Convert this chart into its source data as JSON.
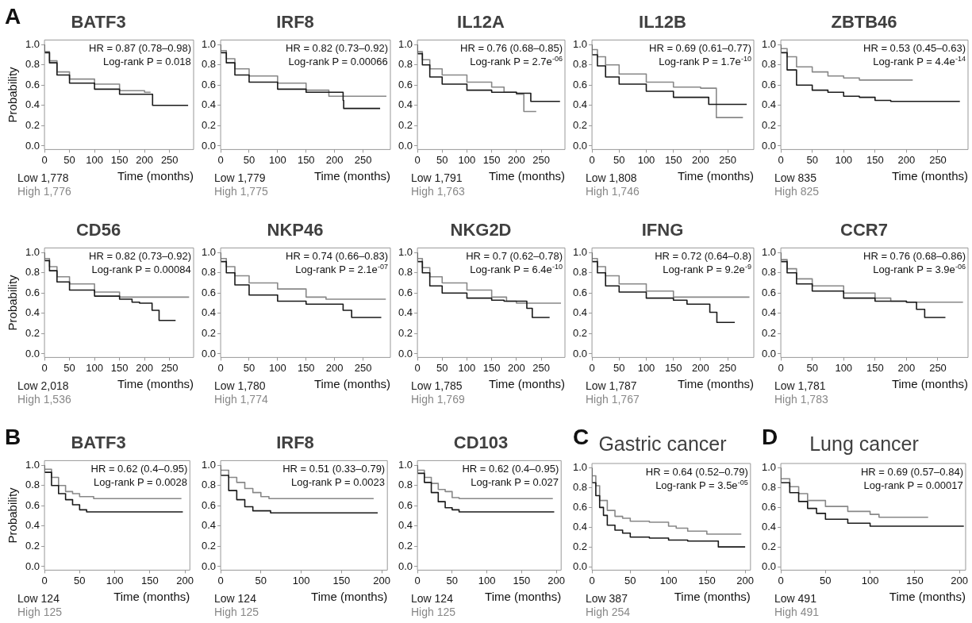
{
  "chart_data": [
    {
      "type": "step",
      "title": "BATF3",
      "ylabel": "Probability",
      "xlabel": "Time (months)",
      "xlim": [
        0,
        298
      ],
      "xticks": [
        0,
        50,
        100,
        150,
        200,
        250
      ],
      "ylim": [
        -0.035,
        1.045
      ],
      "yticks": [
        {
          "value": 0,
          "label": "0.0"
        },
        {
          "value": 0.2,
          "label": "0.2"
        },
        {
          "value": 0.4,
          "label": "0.4"
        },
        {
          "value": 0.6,
          "label": "0.6"
        },
        {
          "value": 0.8,
          "label": "0.8"
        },
        {
          "value": 1,
          "label": "1.0"
        }
      ],
      "annotations": [
        "HR = 0.87 (0.78–0.98)",
        "Log-rank P = 0.018",
        "A"
      ],
      "series": [
        {
          "name": "Low 1,778",
          "color": "#1a1a1a",
          "x": [
            0,
            10,
            25,
            50,
            100,
            150,
            200,
            216,
            217,
            287
          ],
          "values": [
            1,
            0.92,
            0.82,
            0.7,
            0.62,
            0.56,
            0.51,
            0.51,
            0.4,
            0.4
          ]
        },
        {
          "name": "High 1,776",
          "color": "#888888",
          "x": [
            0,
            10,
            25,
            50,
            100,
            150,
            200,
            212
          ],
          "values": [
            1,
            0.93,
            0.84,
            0.73,
            0.66,
            0.61,
            0.545,
            0.53
          ]
        }
      ]
    },
    {
      "type": "step",
      "title": "IRF8",
      "xlabel": "Time (months)",
      "xlim": [
        0,
        298
      ],
      "xticks": [
        0,
        50,
        100,
        150,
        200,
        250
      ],
      "ylim": [
        -0.035,
        1.045
      ],
      "yticks": [
        {
          "value": 0,
          "label": "0.0"
        },
        {
          "value": 0.2,
          "label": "0.2"
        },
        {
          "value": 0.4,
          "label": "0.4"
        },
        {
          "value": 0.6,
          "label": "0.6"
        },
        {
          "value": 0.8,
          "label": "0.8"
        },
        {
          "value": 1,
          "label": "1.0"
        }
      ],
      "annotations": [
        "HR = 0.82 (0.73–0.92)",
        "Log-rank P = 0.00066"
      ],
      "series": [
        {
          "name": "Low 1,779",
          "color": "#1a1a1a",
          "x": [
            0,
            10,
            25,
            50,
            100,
            150,
            200,
            215,
            216,
            228,
            280
          ],
          "values": [
            1,
            0.92,
            0.82,
            0.7,
            0.63,
            0.56,
            0.53,
            0.53,
            0.45,
            0.37,
            0.37
          ]
        },
        {
          "name": "High 1,775",
          "color": "#888888",
          "x": [
            0,
            10,
            25,
            50,
            100,
            150,
            190,
            195,
            291
          ],
          "values": [
            1,
            0.94,
            0.86,
            0.76,
            0.69,
            0.62,
            0.55,
            0.49,
            0.49
          ]
        }
      ]
    },
    {
      "type": "step",
      "title": "IL12A",
      "xlabel": "Time (months)",
      "xlim": [
        0,
        298
      ],
      "xticks": [
        0,
        50,
        100,
        150,
        200,
        250
      ],
      "ylim": [
        -0.035,
        1.045
      ],
      "yticks": [
        {
          "value": 0,
          "label": "0.0"
        },
        {
          "value": 0.2,
          "label": "0.2"
        },
        {
          "value": 0.4,
          "label": "0.4"
        },
        {
          "value": 0.6,
          "label": "0.6"
        },
        {
          "value": 0.8,
          "label": "0.8"
        },
        {
          "value": 1,
          "label": "1.0"
        }
      ],
      "annotations": [
        "HR = 0.76 (0.68–0.85)",
        "Log-rank P = 2.7e$^{-06}$"
      ],
      "series": [
        {
          "name": "Low 1,791",
          "color": "#1a1a1a",
          "x": [
            0,
            10,
            25,
            50,
            100,
            150,
            200,
            229,
            230,
            288
          ],
          "values": [
            1,
            0.91,
            0.8,
            0.68,
            0.61,
            0.55,
            0.53,
            0.52,
            0.44,
            0.44
          ]
        },
        {
          "name": "High 1,763",
          "color": "#888888",
          "x": [
            0,
            10,
            25,
            50,
            100,
            150,
            175,
            200,
            215,
            216,
            240
          ],
          "values": [
            1,
            0.93,
            0.85,
            0.76,
            0.7,
            0.63,
            0.58,
            0.53,
            0.51,
            0.34,
            0.34
          ]
        }
      ]
    },
    {
      "type": "step",
      "title": "IL12B",
      "xlabel": "Time (months)",
      "xlim": [
        0,
        298
      ],
      "xticks": [
        0,
        50,
        100,
        150,
        200,
        250
      ],
      "ylim": [
        -0.035,
        1.045
      ],
      "yticks": [
        {
          "value": 0,
          "label": "0.0"
        },
        {
          "value": 0.2,
          "label": "0.2"
        },
        {
          "value": 0.4,
          "label": "0.4"
        },
        {
          "value": 0.6,
          "label": "0.6"
        },
        {
          "value": 0.8,
          "label": "0.8"
        },
        {
          "value": 1,
          "label": "1.0"
        }
      ],
      "annotations": [
        "HR = 0.69 (0.61–0.77)",
        "Log-rank P = 1.7e$^{-10}$"
      ],
      "series": [
        {
          "name": "Low 1,808",
          "color": "#1a1a1a",
          "x": [
            0,
            10,
            25,
            50,
            100,
            150,
            200,
            215,
            216,
            285
          ],
          "values": [
            1,
            0.9,
            0.79,
            0.68,
            0.61,
            0.54,
            0.48,
            0.48,
            0.41,
            0.41
          ]
        },
        {
          "name": "High 1,746",
          "color": "#888888",
          "x": [
            0,
            10,
            25,
            50,
            100,
            150,
            200,
            229,
            230,
            278
          ],
          "values": [
            1,
            0.95,
            0.88,
            0.8,
            0.71,
            0.63,
            0.58,
            0.57,
            0.28,
            0.28
          ]
        }
      ]
    },
    {
      "type": "step",
      "title": "ZBTB46",
      "xlabel": "Time (months)",
      "xlim": [
        0,
        298
      ],
      "xticks": [
        0,
        50,
        100,
        150,
        200,
        250
      ],
      "ylim": [
        -0.035,
        1.045
      ],
      "yticks": [
        {
          "value": 0,
          "label": "0.0"
        },
        {
          "value": 0.2,
          "label": "0.2"
        },
        {
          "value": 0.4,
          "label": "0.4"
        },
        {
          "value": 0.6,
          "label": "0.6"
        },
        {
          "value": 0.8,
          "label": "0.8"
        },
        {
          "value": 1,
          "label": "1.0"
        }
      ],
      "annotations": [
        "HR = 0.53 (0.45–0.63)",
        "Log-rank P = 4.4e$^{-14}$"
      ],
      "series": [
        {
          "name": "Low 835",
          "color": "#1a1a1a",
          "x": [
            0,
            10,
            25,
            50,
            75,
            100,
            125,
            150,
            175,
            200,
            285
          ],
          "values": [
            1,
            0.92,
            0.75,
            0.6,
            0.55,
            0.53,
            0.49,
            0.48,
            0.45,
            0.44,
            0.44
          ]
        },
        {
          "name": "High 825",
          "color": "#888888",
          "x": [
            0,
            10,
            25,
            50,
            75,
            100,
            125,
            150,
            210
          ],
          "values": [
            1,
            0.96,
            0.88,
            0.78,
            0.73,
            0.69,
            0.67,
            0.65,
            0.65
          ]
        }
      ]
    },
    {
      "type": "step",
      "title": "CD56",
      "ylabel": "Probability",
      "xlabel": "Time (months)",
      "xlim": [
        0,
        298
      ],
      "xticks": [
        0,
        50,
        100,
        150,
        200,
        250
      ],
      "ylim": [
        -0.035,
        1.045
      ],
      "yticks": [
        {
          "value": 0,
          "label": "0.0"
        },
        {
          "value": 0.2,
          "label": "0.2"
        },
        {
          "value": 0.4,
          "label": "0.4"
        },
        {
          "value": 0.6,
          "label": "0.6"
        },
        {
          "value": 0.8,
          "label": "0.8"
        },
        {
          "value": 1,
          "label": "1.0"
        }
      ],
      "annotations": [
        "HR = 0.82 (0.73–0.92)",
        "Log-rank P = 0.00084"
      ],
      "series": [
        {
          "name": "Low 2,018",
          "color": "#1a1a1a",
          "x": [
            0,
            10,
            25,
            50,
            100,
            150,
            175,
            190,
            215,
            216,
            229,
            230,
            262
          ],
          "values": [
            1,
            0.92,
            0.82,
            0.71,
            0.63,
            0.57,
            0.54,
            0.51,
            0.5,
            0.43,
            0.43,
            0.33,
            0.33
          ]
        },
        {
          "name": "High 1,536",
          "color": "#888888",
          "x": [
            0,
            10,
            25,
            50,
            100,
            150,
            165,
            289
          ],
          "values": [
            1,
            0.94,
            0.86,
            0.76,
            0.69,
            0.61,
            0.56,
            0.56
          ]
        }
      ]
    },
    {
      "type": "step",
      "title": "NKP46",
      "xlabel": "Time (months)",
      "xlim": [
        0,
        298
      ],
      "xticks": [
        0,
        50,
        100,
        150,
        200,
        250
      ],
      "ylim": [
        -0.035,
        1.045
      ],
      "yticks": [
        {
          "value": 0,
          "label": "0.0"
        },
        {
          "value": 0.2,
          "label": "0.2"
        },
        {
          "value": 0.4,
          "label": "0.4"
        },
        {
          "value": 0.6,
          "label": "0.6"
        },
        {
          "value": 0.8,
          "label": "0.8"
        },
        {
          "value": 1,
          "label": "1.0"
        }
      ],
      "annotations": [
        "HR = 0.74 (0.66–0.83)",
        "Log-rank P = 2.1e$^{-07}$"
      ],
      "series": [
        {
          "name": "Low 1,780",
          "color": "#1a1a1a",
          "x": [
            0,
            10,
            25,
            50,
            100,
            150,
            200,
            215,
            216,
            230,
            231,
            282
          ],
          "values": [
            1,
            0.91,
            0.8,
            0.68,
            0.58,
            0.52,
            0.49,
            0.49,
            0.43,
            0.43,
            0.36,
            0.36
          ]
        },
        {
          "name": "High 1,774",
          "color": "#888888",
          "x": [
            0,
            10,
            25,
            50,
            100,
            150,
            185,
            190,
            290
          ],
          "values": [
            1,
            0.94,
            0.86,
            0.77,
            0.7,
            0.64,
            0.56,
            0.54,
            0.54
          ]
        }
      ]
    },
    {
      "type": "step",
      "title": "NKG2D",
      "xlabel": "Time (months)",
      "xlim": [
        0,
        298
      ],
      "xticks": [
        0,
        50,
        100,
        150,
        200,
        250
      ],
      "ylim": [
        -0.035,
        1.045
      ],
      "yticks": [
        {
          "value": 0,
          "label": "0.0"
        },
        {
          "value": 0.2,
          "label": "0.2"
        },
        {
          "value": 0.4,
          "label": "0.4"
        },
        {
          "value": 0.6,
          "label": "0.6"
        },
        {
          "value": 0.8,
          "label": "0.8"
        },
        {
          "value": 1,
          "label": "1.0"
        }
      ],
      "annotations": [
        "HR = 0.7 (0.62–0.78)",
        "Log-rank P = 6.4e$^{-10}$"
      ],
      "series": [
        {
          "name": "Low 1,785",
          "color": "#1a1a1a",
          "x": [
            0,
            10,
            25,
            50,
            100,
            150,
            175,
            200,
            221,
            222,
            232,
            233,
            267
          ],
          "values": [
            1,
            0.91,
            0.8,
            0.67,
            0.6,
            0.55,
            0.53,
            0.52,
            0.52,
            0.45,
            0.45,
            0.36,
            0.36
          ]
        },
        {
          "name": "High 1,769",
          "color": "#888888",
          "x": [
            0,
            10,
            25,
            50,
            100,
            150,
            180,
            200,
            290
          ],
          "values": [
            1,
            0.94,
            0.85,
            0.76,
            0.7,
            0.63,
            0.56,
            0.52,
            0.5
          ]
        }
      ]
    },
    {
      "type": "step",
      "title": "IFNG",
      "xlabel": "Time (months)",
      "xlim": [
        0,
        298
      ],
      "xticks": [
        0,
        50,
        100,
        150,
        200,
        250
      ],
      "ylim": [
        -0.035,
        1.045
      ],
      "yticks": [
        {
          "value": 0,
          "label": "0.0"
        },
        {
          "value": 0.2,
          "label": "0.2"
        },
        {
          "value": 0.4,
          "label": "0.4"
        },
        {
          "value": 0.6,
          "label": "0.6"
        },
        {
          "value": 0.8,
          "label": "0.8"
        },
        {
          "value": 1,
          "label": "1.0"
        }
      ],
      "annotations": [
        "HR = 0.72 (0.64–0.8)",
        "Log-rank P = 9.2e$^{-9}$"
      ],
      "series": [
        {
          "name": "Low 1,787",
          "color": "#1a1a1a",
          "x": [
            0,
            10,
            25,
            50,
            100,
            150,
            175,
            200,
            217,
            218,
            230,
            231,
            263
          ],
          "values": [
            1,
            0.91,
            0.8,
            0.67,
            0.61,
            0.55,
            0.53,
            0.49,
            0.49,
            0.41,
            0.41,
            0.31,
            0.31
          ]
        },
        {
          "name": "High 1,767",
          "color": "#888888",
          "x": [
            0,
            10,
            25,
            50,
            100,
            150,
            180,
            290
          ],
          "values": [
            1,
            0.94,
            0.86,
            0.77,
            0.69,
            0.62,
            0.56,
            0.56
          ]
        }
      ]
    },
    {
      "type": "step",
      "title": "CCR7",
      "xlabel": "Time (months)",
      "xlim": [
        0,
        298
      ],
      "xticks": [
        0,
        50,
        100,
        150,
        200,
        250
      ],
      "ylim": [
        -0.035,
        1.045
      ],
      "yticks": [
        {
          "value": 0,
          "label": "0.0"
        },
        {
          "value": 0.2,
          "label": "0.2"
        },
        {
          "value": 0.4,
          "label": "0.4"
        },
        {
          "value": 0.6,
          "label": "0.6"
        },
        {
          "value": 0.8,
          "label": "0.8"
        },
        {
          "value": 1,
          "label": "1.0"
        }
      ],
      "annotations": [
        "HR = 0.76 (0.68–0.86)",
        "Log-rank P = 3.9e$^{-06}$"
      ],
      "series": [
        {
          "name": "Low 1,781",
          "color": "#1a1a1a",
          "x": [
            0,
            10,
            25,
            50,
            100,
            150,
            200,
            216,
            217,
            229,
            230,
            262
          ],
          "values": [
            1,
            0.91,
            0.8,
            0.69,
            0.62,
            0.55,
            0.52,
            0.51,
            0.44,
            0.44,
            0.36,
            0.36
          ]
        },
        {
          "name": "High 1,783",
          "color": "#888888",
          "x": [
            0,
            10,
            25,
            50,
            100,
            150,
            175,
            200,
            290
          ],
          "values": [
            1,
            0.93,
            0.84,
            0.74,
            0.67,
            0.6,
            0.55,
            0.52,
            0.51
          ]
        }
      ]
    },
    {
      "type": "step",
      "title": "BATF3",
      "ylabel": "Probability",
      "xlabel": "Time (months)",
      "xlim": [
        0,
        207
      ],
      "xticks": [
        0,
        50,
        100,
        150,
        200
      ],
      "ylim": [
        -0.035,
        1.045
      ],
      "yticks": [
        {
          "value": 0,
          "label": "0.0"
        },
        {
          "value": 0.2,
          "label": "0.2"
        },
        {
          "value": 0.4,
          "label": "0.4"
        },
        {
          "value": 0.6,
          "label": "0.6"
        },
        {
          "value": 0.8,
          "label": "0.8"
        },
        {
          "value": 1,
          "label": "1.0"
        }
      ],
      "annotations": [
        "HR = 0.62 (0.4–0.95)",
        "Log-rank P = 0.0028",
        "B"
      ],
      "series": [
        {
          "name": "Low 124",
          "color": "#1a1a1a",
          "x": [
            0,
            10,
            20,
            30,
            40,
            50,
            60,
            65,
            197
          ],
          "values": [
            1,
            0.93,
            0.8,
            0.72,
            0.66,
            0.61,
            0.56,
            0.54,
            0.54
          ]
        },
        {
          "name": "High 125",
          "color": "#888888",
          "x": [
            0,
            10,
            20,
            30,
            40,
            50,
            70,
            75,
            195
          ],
          "values": [
            1,
            0.96,
            0.88,
            0.8,
            0.74,
            0.72,
            0.69,
            0.67,
            0.67
          ]
        }
      ]
    },
    {
      "type": "step",
      "title": "IRF8",
      "xlabel": "Time (months)",
      "xlim": [
        0,
        207
      ],
      "xticks": [
        0,
        50,
        100,
        150,
        200
      ],
      "ylim": [
        -0.035,
        1.045
      ],
      "yticks": [
        {
          "value": 0,
          "label": "0.0"
        },
        {
          "value": 0.2,
          "label": "0.2"
        },
        {
          "value": 0.4,
          "label": "0.4"
        },
        {
          "value": 0.6,
          "label": "0.6"
        },
        {
          "value": 0.8,
          "label": "0.8"
        },
        {
          "value": 1,
          "label": "1.0"
        }
      ],
      "annotations": [
        "HR = 0.51 (0.33–0.79)",
        "Log-rank P = 0.0023"
      ],
      "series": [
        {
          "name": "Low 124",
          "color": "#1a1a1a",
          "x": [
            0,
            10,
            20,
            30,
            40,
            50,
            62,
            64,
            195
          ],
          "values": [
            1,
            0.9,
            0.75,
            0.66,
            0.59,
            0.55,
            0.55,
            0.53,
            0.53
          ]
        },
        {
          "name": "High 125",
          "color": "#888888",
          "x": [
            0,
            10,
            20,
            30,
            40,
            50,
            60,
            75,
            190
          ],
          "values": [
            1,
            0.95,
            0.88,
            0.83,
            0.77,
            0.73,
            0.69,
            0.67,
            0.67
          ]
        }
      ]
    },
    {
      "type": "step",
      "title": "CD103",
      "xlabel": "Time (months)",
      "xlim": [
        0,
        207
      ],
      "xticks": [
        0,
        50,
        100,
        150,
        200
      ],
      "ylim": [
        -0.035,
        1.045
      ],
      "yticks": [
        {
          "value": 0,
          "label": "0.0"
        },
        {
          "value": 0.2,
          "label": "0.2"
        },
        {
          "value": 0.4,
          "label": "0.4"
        },
        {
          "value": 0.6,
          "label": "0.6"
        },
        {
          "value": 0.8,
          "label": "0.8"
        },
        {
          "value": 1,
          "label": "1.0"
        }
      ],
      "annotations": [
        "HR = 0.62 (0.4–0.95)",
        "Log-rank P = 0.027"
      ],
      "series": [
        {
          "name": "Low 124",
          "color": "#1a1a1a",
          "x": [
            0,
            10,
            20,
            30,
            40,
            50,
            60,
            75,
            197
          ],
          "values": [
            1,
            0.92,
            0.83,
            0.73,
            0.64,
            0.58,
            0.56,
            0.54,
            0.54
          ]
        },
        {
          "name": "High 125",
          "color": "#888888",
          "x": [
            0,
            10,
            20,
            30,
            40,
            50,
            60,
            70,
            195
          ],
          "values": [
            1,
            0.95,
            0.88,
            0.82,
            0.76,
            0.74,
            0.68,
            0.67,
            0.67
          ]
        }
      ]
    },
    {
      "type": "step",
      "title": "Gastric cancer",
      "xlabel": "Time (months)",
      "xlim": [
        0,
        207
      ],
      "xticks": [
        0,
        50,
        100,
        150,
        200
      ],
      "ylim": [
        -0.035,
        1.045
      ],
      "yticks": [
        {
          "value": 0,
          "label": "0.0"
        },
        {
          "value": 0.2,
          "label": "0.2"
        },
        {
          "value": 0.4,
          "label": "0.4"
        },
        {
          "value": 0.6,
          "label": "0.6"
        },
        {
          "value": 0.8,
          "label": "0.8"
        },
        {
          "value": 1,
          "label": "1.0"
        }
      ],
      "annotations": [
        "HR = 0.64 (0.52–0.79)",
        "Log-rank P = 3.5e$^{-05}$",
        "C"
      ],
      "series": [
        {
          "name": "Low 387",
          "color": "#1a1a1a",
          "x": [
            0,
            5,
            10,
            15,
            20,
            30,
            40,
            50,
            75,
            100,
            125,
            150,
            165,
            167,
            200
          ],
          "values": [
            1,
            0.85,
            0.72,
            0.6,
            0.52,
            0.42,
            0.37,
            0.34,
            0.3,
            0.29,
            0.27,
            0.26,
            0.26,
            0.2,
            0.2
          ]
        },
        {
          "name": "High 254",
          "color": "#888888",
          "x": [
            0,
            5,
            10,
            20,
            30,
            40,
            50,
            75,
            100,
            110,
            125,
            150,
            152,
            195
          ],
          "values": [
            1,
            0.92,
            0.82,
            0.67,
            0.57,
            0.51,
            0.49,
            0.46,
            0.45,
            0.41,
            0.39,
            0.36,
            0.33,
            0.33
          ]
        }
      ]
    },
    {
      "type": "step",
      "title": "Lung cancer",
      "xlabel": "Time (months)",
      "xlim": [
        0,
        207
      ],
      "xticks": [
        0,
        50,
        100,
        150,
        200
      ],
      "ylim": [
        -0.035,
        1.045
      ],
      "yticks": [
        {
          "value": 0,
          "label": "0.0"
        },
        {
          "value": 0.2,
          "label": "0.2"
        },
        {
          "value": 0.4,
          "label": "0.4"
        },
        {
          "value": 0.6,
          "label": "0.6"
        },
        {
          "value": 0.8,
          "label": "0.8"
        },
        {
          "value": 1,
          "label": "1.0"
        }
      ],
      "annotations": [
        "HR = 0.69 (0.57–0.84)",
        "Log-rank P = 0.00017",
        "D"
      ],
      "series": [
        {
          "name": "Low 491",
          "color": "#1a1a1a",
          "x": [
            0,
            10,
            20,
            30,
            40,
            50,
            75,
            100,
            105,
            205
          ],
          "values": [
            1,
            0.85,
            0.75,
            0.66,
            0.59,
            0.54,
            0.48,
            0.44,
            0.41,
            0.41
          ]
        },
        {
          "name": "High 491",
          "color": "#888888",
          "x": [
            0,
            10,
            20,
            30,
            50,
            75,
            100,
            110,
            115,
            165
          ],
          "values": [
            1,
            0.89,
            0.81,
            0.74,
            0.67,
            0.61,
            0.56,
            0.53,
            0.5,
            0.5
          ]
        }
      ]
    }
  ]
}
